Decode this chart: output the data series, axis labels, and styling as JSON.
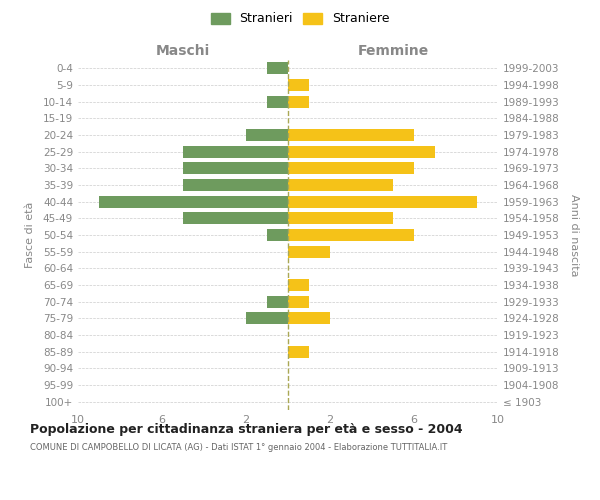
{
  "age_groups": [
    "100+",
    "95-99",
    "90-94",
    "85-89",
    "80-84",
    "75-79",
    "70-74",
    "65-69",
    "60-64",
    "55-59",
    "50-54",
    "45-49",
    "40-44",
    "35-39",
    "30-34",
    "25-29",
    "20-24",
    "15-19",
    "10-14",
    "5-9",
    "0-4"
  ],
  "birth_years": [
    "≤ 1903",
    "1904-1908",
    "1909-1913",
    "1914-1918",
    "1919-1923",
    "1924-1928",
    "1929-1933",
    "1934-1938",
    "1939-1943",
    "1944-1948",
    "1949-1953",
    "1954-1958",
    "1959-1963",
    "1964-1968",
    "1969-1973",
    "1974-1978",
    "1979-1983",
    "1984-1988",
    "1989-1993",
    "1994-1998",
    "1999-2003"
  ],
  "maschi": [
    0,
    0,
    0,
    0,
    0,
    2,
    1,
    0,
    0,
    0,
    1,
    5,
    9,
    5,
    5,
    5,
    2,
    0,
    1,
    0,
    1
  ],
  "femmine": [
    0,
    0,
    0,
    1,
    0,
    2,
    1,
    1,
    0,
    2,
    6,
    5,
    9,
    5,
    6,
    7,
    6,
    0,
    1,
    1,
    0
  ],
  "maschi_color": "#6e9b5e",
  "femmine_color": "#f5c218",
  "background_color": "#ffffff",
  "grid_color": "#cccccc",
  "title": "Popolazione per cittadinanza straniera per età e sesso - 2004",
  "subtitle": "COMUNE DI CAMPOBELLO DI LICATA (AG) - Dati ISTAT 1° gennaio 2004 - Elaborazione TUTTITALIA.IT",
  "ylabel_left": "Fasce di età",
  "ylabel_right": "Anni di nascita",
  "header_left": "Maschi",
  "header_right": "Femmine",
  "legend_maschi": "Stranieri",
  "legend_femmine": "Straniere",
  "xlim": 10,
  "dashed_line_color": "#aaa855"
}
